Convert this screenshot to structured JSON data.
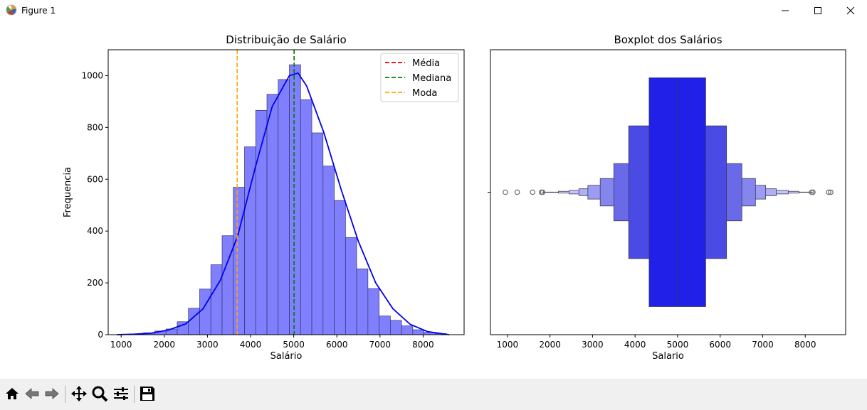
{
  "window": {
    "title": "Figure 1"
  },
  "toolbar": {
    "buttons": [
      "home-icon",
      "back-icon",
      "forward-icon",
      "pan-icon",
      "zoom-icon",
      "configure-icon",
      "save-icon"
    ],
    "status": ""
  },
  "colors": {
    "bar_fill": "#8080ff",
    "bar_edge": "#333366",
    "kde": "#0000ee",
    "media": "#e00000",
    "mediana": "#008000",
    "moda": "#ffa500",
    "box_dark": "#1f1fe6"
  },
  "chart_data": [
    {
      "type": "bar",
      "title": "Distribuição de Salário",
      "xlabel": "Salário",
      "ylabel": "Frequencia",
      "xlim": [
        700,
        8950
      ],
      "ylim": [
        0,
        1100
      ],
      "xticks": [
        1000,
        2000,
        3000,
        4000,
        5000,
        6000,
        7000,
        8000
      ],
      "yticks": [
        0,
        200,
        400,
        600,
        800,
        1000
      ],
      "bin_width": 260,
      "bins_start": [
        1000,
        1260,
        1520,
        1780,
        2040,
        2300,
        2560,
        2820,
        3080,
        3340,
        3600,
        3860,
        4120,
        4380,
        4640,
        4900,
        5160,
        5420,
        5680,
        5940,
        6200,
        6460,
        6720,
        6980,
        7240,
        7500,
        7760,
        8020,
        8280
      ],
      "values": [
        1,
        3,
        7,
        14,
        22,
        50,
        102,
        176,
        270,
        382,
        569,
        725,
        866,
        928,
        985,
        1042,
        907,
        779,
        651,
        518,
        375,
        254,
        178,
        72,
        55,
        34,
        19,
        9,
        4
      ],
      "kde": {
        "x": [
          900,
          1300,
          1700,
          2100,
          2500,
          2900,
          3300,
          3700,
          4100,
          4500,
          4900,
          5100,
          5300,
          5700,
          6100,
          6500,
          6900,
          7300,
          7700,
          8100,
          8600
        ],
        "y": [
          0,
          2,
          6,
          18,
          42,
          100,
          210,
          380,
          640,
          880,
          1000,
          1010,
          960,
          780,
          560,
          360,
          200,
          100,
          40,
          12,
          0
        ]
      },
      "lines": [
        {
          "name": "Média",
          "x": 5010,
          "color": "#e00000"
        },
        {
          "name": "Mediana",
          "x": 5010,
          "color": "#008000"
        },
        {
          "name": "Moda",
          "x": 3690,
          "color": "#ffa500"
        }
      ],
      "legend": {
        "placement": "top-right",
        "entries": [
          "Média",
          "Mediana",
          "Moda"
        ]
      }
    },
    {
      "type": "boxen",
      "title": "Boxplot dos Salários",
      "xlabel": "Salario",
      "xlim": [
        600,
        8950
      ],
      "xticks": [
        1000,
        2000,
        3000,
        4000,
        5000,
        6000,
        7000,
        8000
      ],
      "median": 5000,
      "levels": [
        {
          "lo": 4330,
          "hi": 5660,
          "height": 1.0
        },
        {
          "lo": 3850,
          "hi": 6150,
          "height": 0.58
        },
        {
          "lo": 3500,
          "hi": 6510,
          "height": 0.25
        },
        {
          "lo": 3180,
          "hi": 6830,
          "height": 0.12
        },
        {
          "lo": 2890,
          "hi": 7070,
          "height": 0.06
        },
        {
          "lo": 2680,
          "hi": 7320,
          "height": 0.03
        },
        {
          "lo": 2450,
          "hi": 7600,
          "height": 0.015
        },
        {
          "lo": 2200,
          "hi": 7850,
          "height": 0.008
        }
      ],
      "whisker": [
        1820,
        8180
      ],
      "outliers": [
        950,
        1230,
        1590,
        1800,
        1830,
        8150,
        8180,
        8550,
        8600
      ]
    }
  ]
}
